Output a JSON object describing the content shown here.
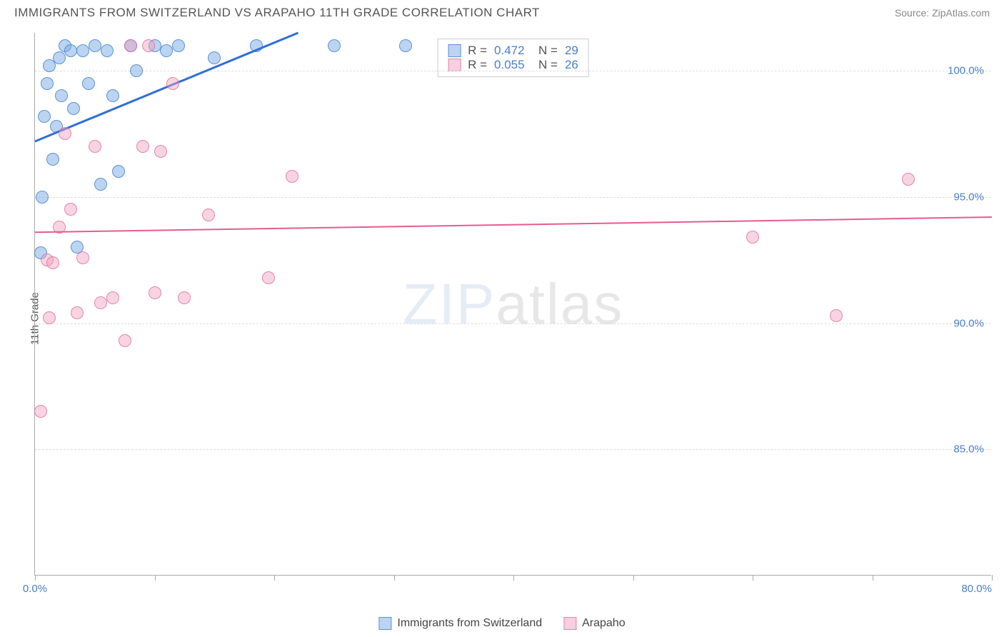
{
  "header": {
    "title": "IMMIGRANTS FROM SWITZERLAND VS ARAPAHO 11TH GRADE CORRELATION CHART",
    "source": "Source: ZipAtlas.com"
  },
  "chart": {
    "type": "scatter",
    "ylabel": "11th Grade",
    "watermark_bold": "ZIP",
    "watermark_thin": "atlas",
    "background_color": "#ffffff",
    "grid_color": "#dddddd",
    "axis_color": "#aaaaaa",
    "xlim": [
      0,
      80
    ],
    "ylim": [
      80,
      101.5
    ],
    "yticks": [
      {
        "value": 100,
        "label": "100.0%"
      },
      {
        "value": 95,
        "label": "95.0%"
      },
      {
        "value": 90,
        "label": "90.0%"
      },
      {
        "value": 85,
        "label": "85.0%"
      }
    ],
    "xticks": [
      0,
      10,
      20,
      30,
      40,
      50,
      60,
      70,
      80
    ],
    "xtick_labels": {
      "0": "0.0%",
      "80": "80.0%"
    },
    "series": [
      {
        "name": "Immigrants from Switzerland",
        "color_fill": "rgba(120,170,230,0.5)",
        "color_border": "rgba(70,130,200,0.8)",
        "r": 0.472,
        "n": 29,
        "trendline": {
          "x1": 0,
          "y1": 97.2,
          "x2": 22,
          "y2": 101.5,
          "color": "#2e6fd6",
          "width": 3
        },
        "points": [
          [
            0.5,
            92.8
          ],
          [
            0.6,
            95.0
          ],
          [
            0.8,
            98.2
          ],
          [
            1.0,
            99.5
          ],
          [
            1.2,
            100.2
          ],
          [
            1.5,
            96.5
          ],
          [
            1.8,
            97.8
          ],
          [
            2.0,
            100.5
          ],
          [
            2.2,
            99.0
          ],
          [
            2.5,
            101.0
          ],
          [
            3.0,
            100.8
          ],
          [
            3.2,
            98.5
          ],
          [
            3.5,
            93.0
          ],
          [
            4.0,
            100.8
          ],
          [
            4.5,
            99.5
          ],
          [
            5.0,
            101.0
          ],
          [
            5.5,
            95.5
          ],
          [
            6.0,
            100.8
          ],
          [
            6.5,
            99.0
          ],
          [
            7.0,
            96.0
          ],
          [
            8.0,
            101.0
          ],
          [
            8.5,
            100.0
          ],
          [
            10.0,
            101.0
          ],
          [
            11.0,
            100.8
          ],
          [
            12.0,
            101.0
          ],
          [
            15.0,
            100.5
          ],
          [
            18.5,
            101.0
          ],
          [
            25.0,
            101.0
          ],
          [
            31.0,
            101.0
          ]
        ]
      },
      {
        "name": "Arapaho",
        "color_fill": "rgba(240,160,190,0.45)",
        "color_border": "rgba(220,100,140,0.7)",
        "r": 0.055,
        "n": 26,
        "trendline": {
          "x1": 0,
          "y1": 93.6,
          "x2": 80,
          "y2": 94.2,
          "color": "#e85a8f",
          "width": 2
        },
        "points": [
          [
            0.5,
            86.5
          ],
          [
            1.0,
            92.5
          ],
          [
            1.2,
            90.2
          ],
          [
            1.5,
            92.4
          ],
          [
            2.0,
            93.8
          ],
          [
            2.5,
            97.5
          ],
          [
            3.0,
            94.5
          ],
          [
            3.5,
            90.4
          ],
          [
            4.0,
            92.6
          ],
          [
            5.0,
            97.0
          ],
          [
            5.5,
            90.8
          ],
          [
            6.5,
            91.0
          ],
          [
            7.5,
            89.3
          ],
          [
            8.0,
            101.0
          ],
          [
            9.0,
            97.0
          ],
          [
            9.5,
            101.0
          ],
          [
            10.0,
            91.2
          ],
          [
            10.5,
            96.8
          ],
          [
            11.5,
            99.5
          ],
          [
            12.5,
            91.0
          ],
          [
            14.5,
            94.3
          ],
          [
            19.5,
            91.8
          ],
          [
            21.5,
            95.8
          ],
          [
            60.0,
            93.4
          ],
          [
            67.0,
            90.3
          ],
          [
            73.0,
            95.7
          ]
        ]
      }
    ],
    "legend_bottom": [
      {
        "swatch": "s1",
        "label": "Immigrants from Switzerland"
      },
      {
        "swatch": "s2",
        "label": "Arapaho"
      }
    ]
  }
}
